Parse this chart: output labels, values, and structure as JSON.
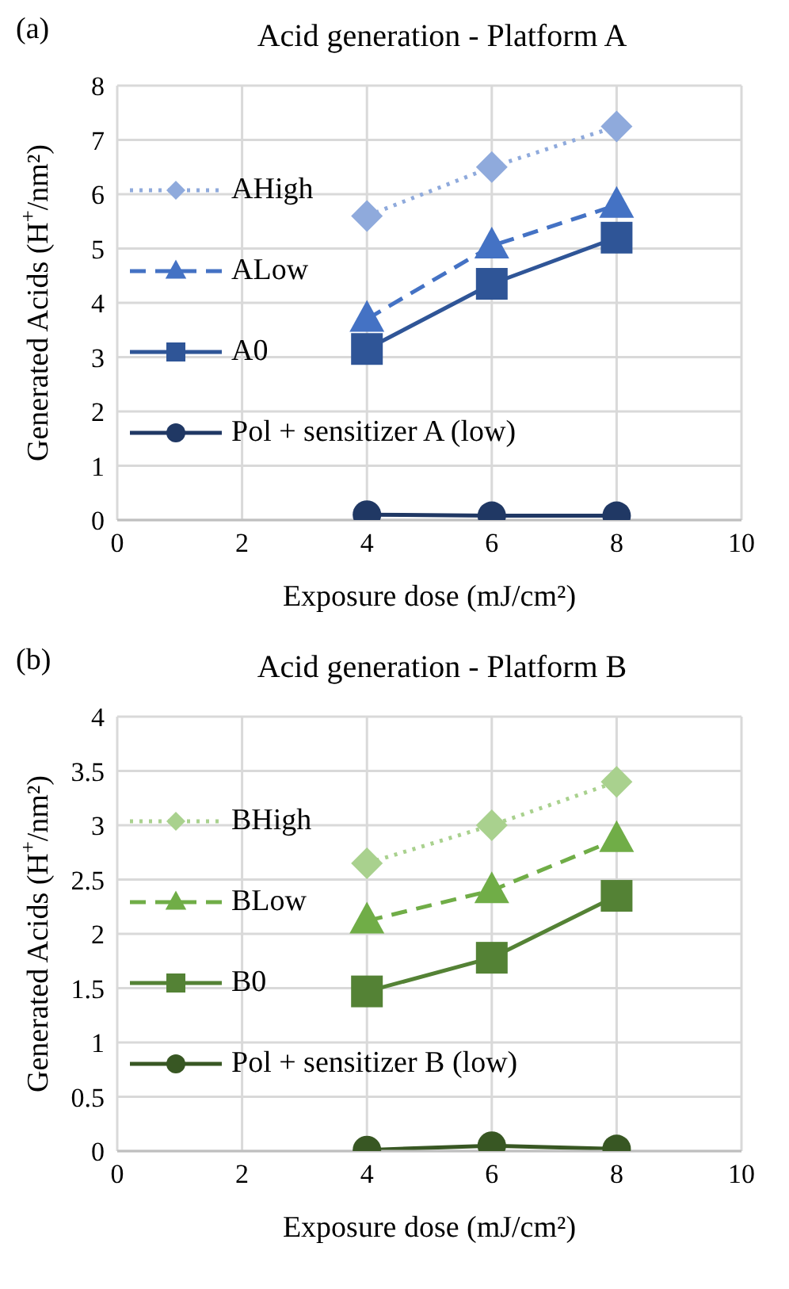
{
  "chart_data": [
    {
      "type": "line",
      "title": "Acid generation - Platform A",
      "annotations": [
        "(a)"
      ],
      "xlabel": "Exposure dose (mJ/cm²)",
      "ylabel": "Generated Acids (H$^{+}$/nm²)",
      "x": [
        4,
        6,
        8
      ],
      "xlim": [
        0,
        10
      ],
      "xticks": [
        0,
        2,
        4,
        6,
        8,
        10
      ],
      "ylim": [
        0,
        8
      ],
      "yticks": [
        0,
        1,
        2,
        3,
        4,
        5,
        6,
        7,
        8
      ],
      "grid": true,
      "legend": "left",
      "series": [
        {
          "name": "AHigh",
          "color": "#8faadc",
          "values": [
            5.6,
            6.5,
            7.25
          ],
          "marker": "diamond",
          "line_style": "dotted"
        },
        {
          "name": "ALow",
          "color": "#4472c4",
          "values": [
            3.7,
            5.05,
            5.8
          ],
          "marker": "triangle",
          "line_style": "dashed"
        },
        {
          "name": "A0",
          "color": "#2f5597",
          "values": [
            3.15,
            4.35,
            5.2
          ],
          "marker": "square",
          "line_style": "solid"
        },
        {
          "name": "Pol + sensitizer A (low)",
          "color": "#203864",
          "values": [
            0.1,
            0.08,
            0.08
          ],
          "marker": "circle",
          "line_style": "solid"
        }
      ]
    },
    {
      "type": "line",
      "title": "Acid generation - Platform B",
      "annotations": [
        "(b)"
      ],
      "xlabel": "Exposure dose (mJ/cm²)",
      "ylabel": "Generated Acids (H$^{+}$/nm²)",
      "x": [
        4,
        6,
        8
      ],
      "xlim": [
        0,
        10
      ],
      "xticks": [
        0,
        2,
        4,
        6,
        8,
        10
      ],
      "ylim": [
        0,
        4
      ],
      "yticks": [
        0,
        0.5,
        1,
        1.5,
        2,
        2.5,
        3,
        3.5,
        4
      ],
      "grid": true,
      "legend": "left",
      "series": [
        {
          "name": "BHigh",
          "color": "#a9d18e",
          "values": [
            2.65,
            3.0,
            3.4
          ],
          "marker": "diamond",
          "line_style": "dotted"
        },
        {
          "name": "BLow",
          "color": "#70ad47",
          "values": [
            2.12,
            2.4,
            2.87
          ],
          "marker": "triangle",
          "line_style": "dashed"
        },
        {
          "name": "B0",
          "color": "#548235",
          "values": [
            1.47,
            1.78,
            2.35
          ],
          "marker": "square",
          "line_style": "solid"
        },
        {
          "name": "Pol + sensitizer B (low)",
          "color": "#385723",
          "values": [
            0.01,
            0.05,
            0.02
          ],
          "marker": "circle",
          "line_style": "solid"
        }
      ]
    }
  ]
}
